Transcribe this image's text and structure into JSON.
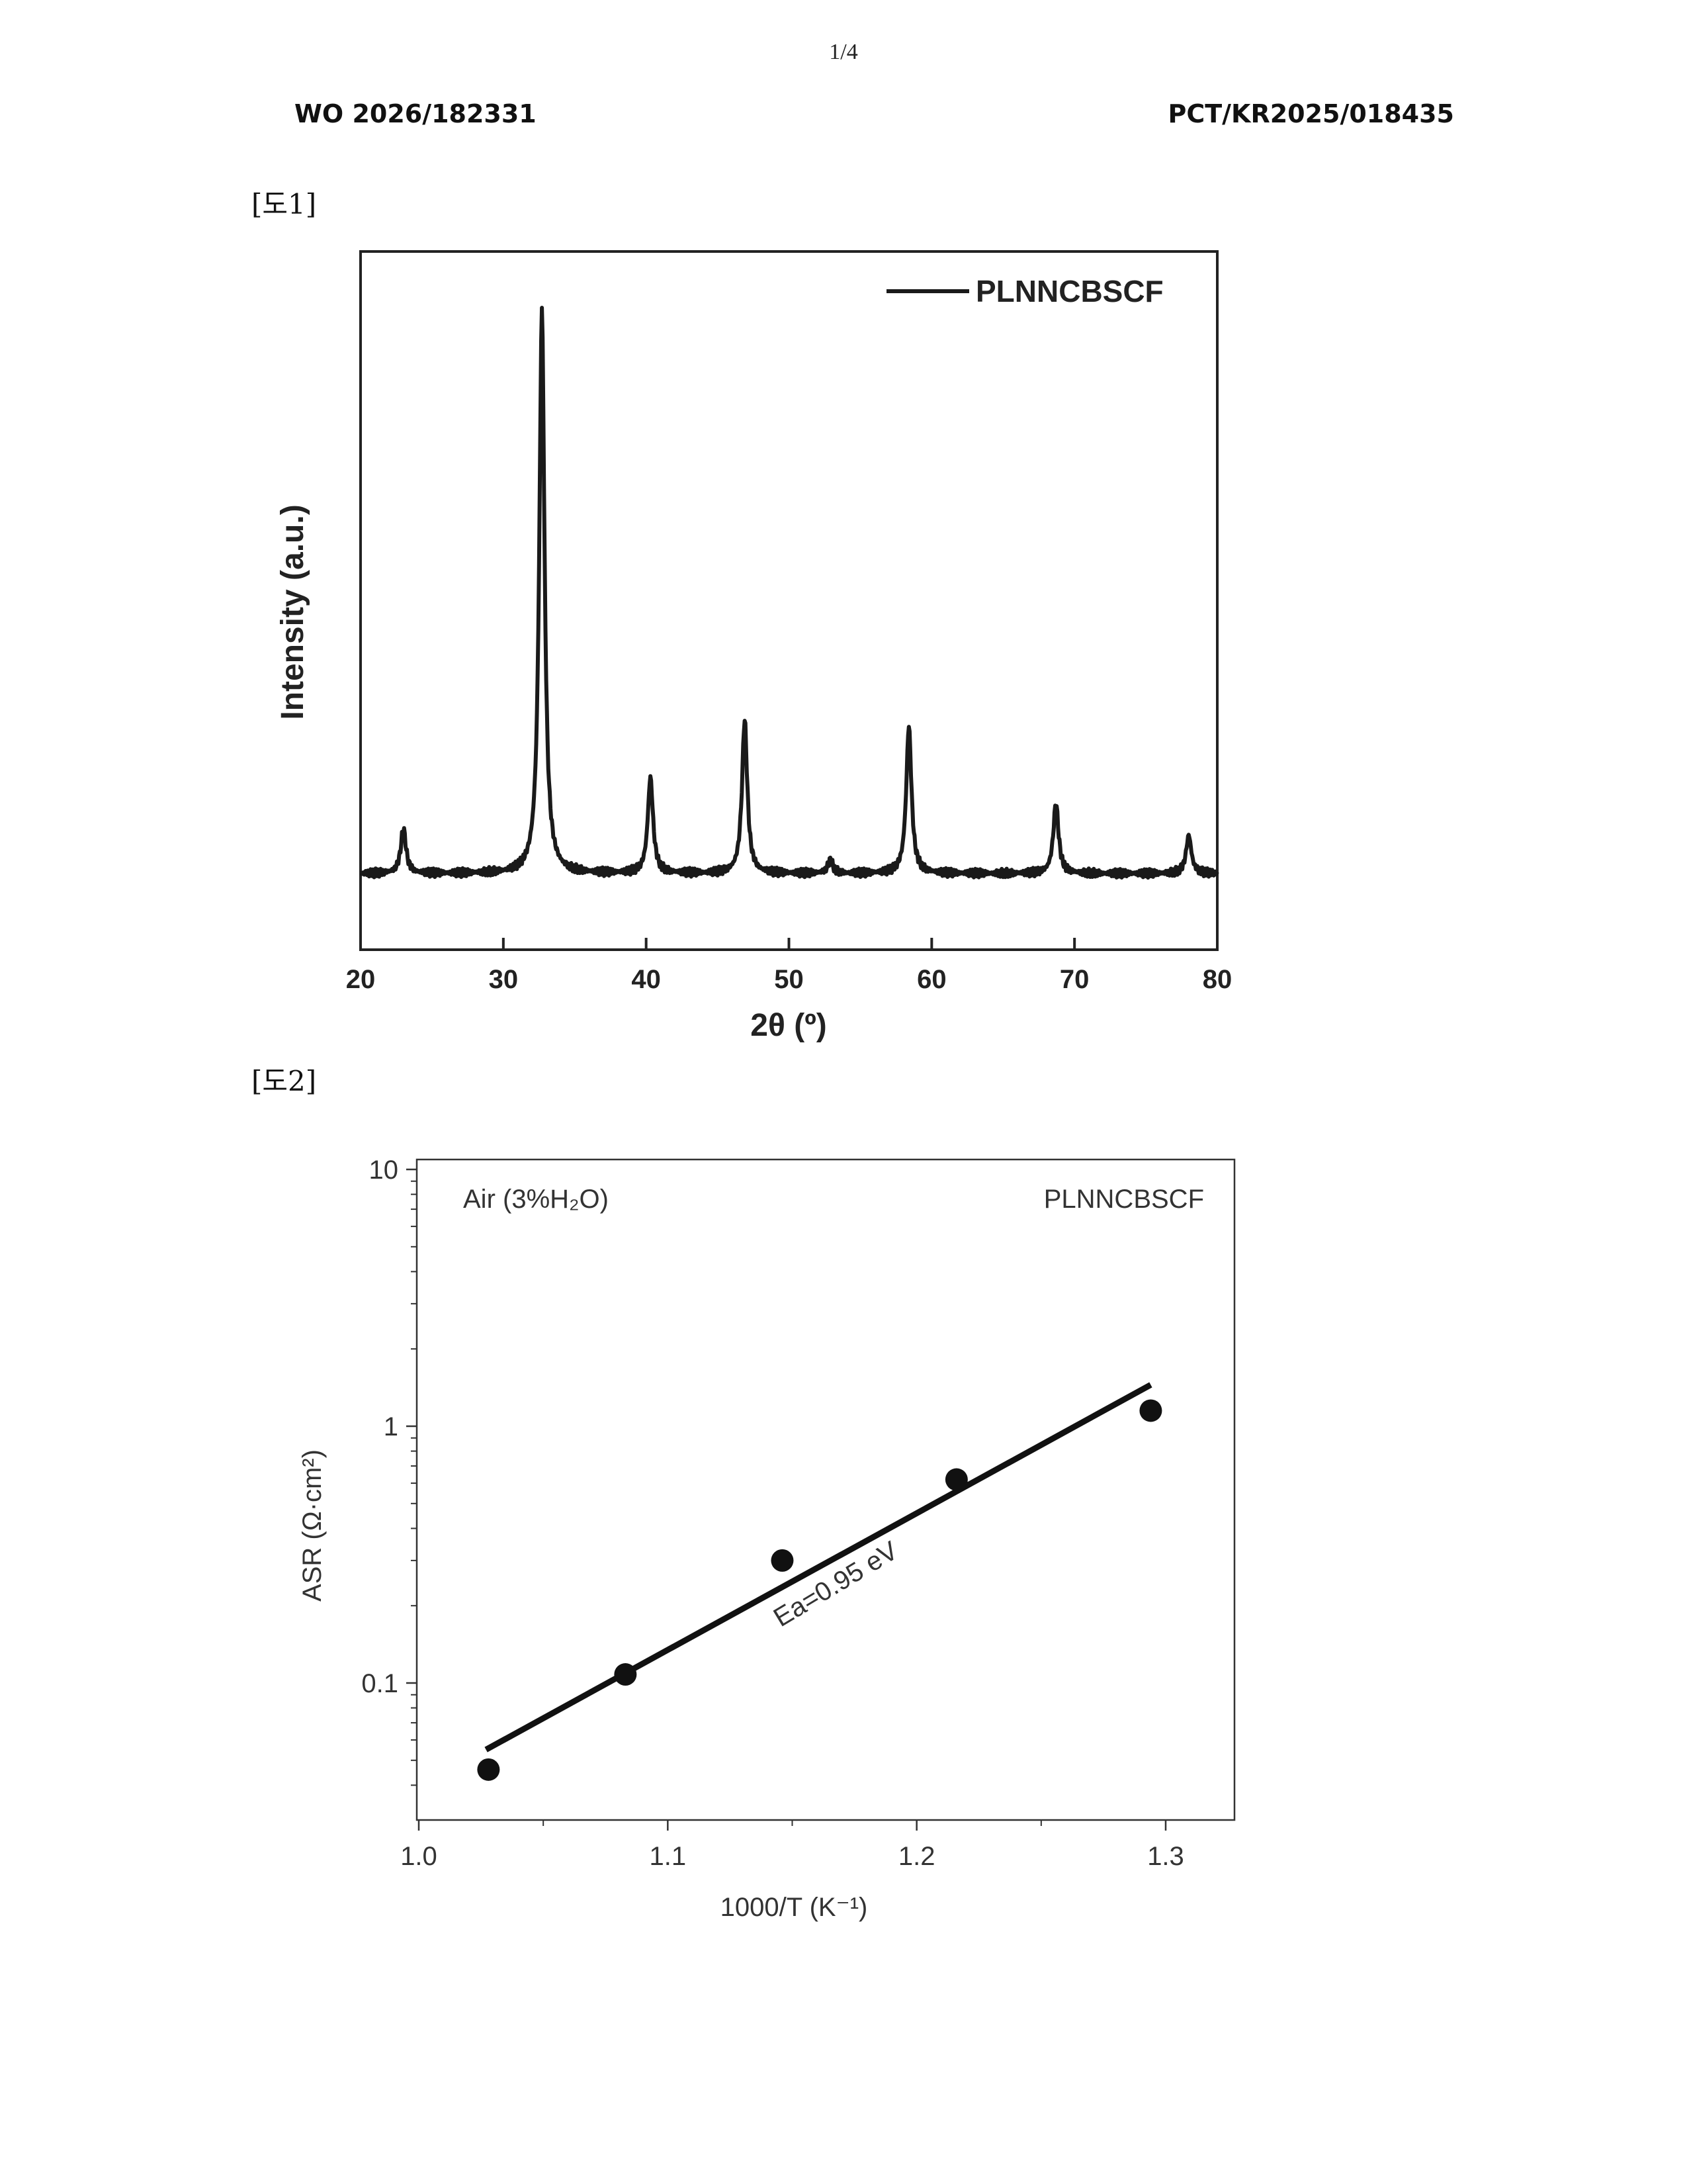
{
  "page": {
    "number": "1/4",
    "publication_number": "WO 2026/182331",
    "application_number": "PCT/KR2025/018435",
    "figure1_label": "[도1]",
    "figure2_label": "[도2]"
  },
  "chart_data": [
    {
      "type": "line",
      "xlabel": "2θ (º)",
      "ylabel": "Intensity (a.u.)",
      "xlim": [
        20,
        80
      ],
      "x_ticks": [
        "20",
        "30",
        "40",
        "50",
        "60",
        "70",
        "80"
      ],
      "y_ticks_shown": false,
      "legend": "top-right",
      "series": [
        {
          "name": "PLNNCBSCF",
          "baseline": 0.12,
          "peaks": [
            {
              "x": 23.0,
              "intensity": 0.19
            },
            {
              "x": 32.7,
              "intensity": 1.0
            },
            {
              "x": 40.3,
              "intensity": 0.27
            },
            {
              "x": 46.9,
              "intensity": 0.36
            },
            {
              "x": 52.9,
              "intensity": 0.14
            },
            {
              "x": 58.4,
              "intensity": 0.35
            },
            {
              "x": 68.7,
              "intensity": 0.23
            },
            {
              "x": 78.0,
              "intensity": 0.18
            }
          ]
        }
      ]
    },
    {
      "type": "scatter",
      "xlabel": "1000/T (K⁻¹)",
      "ylabel": "ASR (Ω·cm²)",
      "xlim": [
        1.0,
        1.33
      ],
      "ylim": [
        0.033,
        10
      ],
      "yscale": "log",
      "x_ticks": [
        "1.0",
        "1.1",
        "1.2",
        "1.3"
      ],
      "y_ticks": [
        "10",
        "1",
        "0.1"
      ],
      "annotations": {
        "condition": "Air (3%H₂O)",
        "sample": "PLNNCBSCF",
        "activation_energy": "Ea=0.95 eV"
      },
      "points": [
        {
          "x": 1.028,
          "y": 0.046
        },
        {
          "x": 1.083,
          "y": 0.108
        },
        {
          "x": 1.146,
          "y": 0.3
        },
        {
          "x": 1.216,
          "y": 0.62
        },
        {
          "x": 1.294,
          "y": 1.15
        }
      ],
      "fit_line": {
        "x": [
          1.027,
          1.294
        ],
        "y": [
          0.055,
          1.45
        ]
      }
    }
  ]
}
